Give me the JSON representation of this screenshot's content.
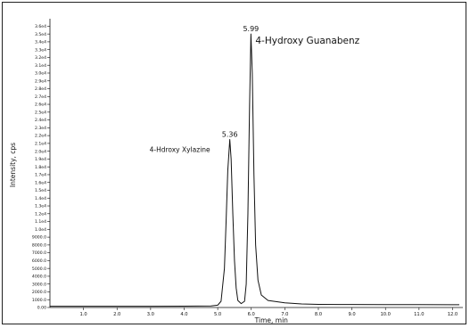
{
  "chart_data": {
    "type": "line",
    "xlabel": "Time, min",
    "ylabel": "Intensity, cps",
    "xlim": [
      0,
      12.2
    ],
    "ylim": [
      0,
      36500
    ],
    "x_ticks": [
      1.0,
      2.0,
      3.0,
      4.0,
      5.0,
      6.0,
      7.0,
      8.0,
      9.0,
      10.0,
      11.0,
      12.0
    ],
    "x_tick_labels": [
      "1.0",
      "2.0",
      "3.0",
      "4.0",
      "5.0",
      "6.0",
      "7.0",
      "8.0",
      "9.0",
      "10.0",
      "11.0",
      "12.0"
    ],
    "y_ticks": [
      0,
      1000,
      2000,
      3000,
      4000,
      5000,
      6000,
      7000,
      8000,
      9000,
      10000,
      11000,
      12000,
      13000,
      14000,
      15000,
      16000,
      17000,
      18000,
      19000,
      20000,
      21000,
      22000,
      23000,
      24000,
      25000,
      26000,
      27000,
      28000,
      29000,
      30000,
      31000,
      32000,
      33000,
      34000,
      35000,
      36000
    ],
    "y_tick_labels": [
      "0.00",
      "1000.0",
      "2000.0",
      "3000.0",
      "4000.0",
      "5000.0",
      "6000.0",
      "7000.0",
      "8000.0",
      "9000.0",
      "1.0e4",
      "1.1e4",
      "1.2e4",
      "1.3e4",
      "1.4e4",
      "1.5e4",
      "1.6e4",
      "1.7e4",
      "1.8e4",
      "1.9e4",
      "2.0e4",
      "2.1e4",
      "2.2e4",
      "2.3e4",
      "2.4e4",
      "2.5e4",
      "2.6e4",
      "2.7e4",
      "2.8e4",
      "2.9e4",
      "3.0e4",
      "3.1e4",
      "3.2e4",
      "3.3e4",
      "3.4e4",
      "3.5e4",
      "3.6e4"
    ],
    "series": [
      {
        "points": [
          [
            0.0,
            150
          ],
          [
            1.0,
            160
          ],
          [
            2.0,
            150
          ],
          [
            3.0,
            160
          ],
          [
            4.0,
            170
          ],
          [
            4.8,
            200
          ],
          [
            5.0,
            300
          ],
          [
            5.1,
            800
          ],
          [
            5.2,
            5000
          ],
          [
            5.25,
            11000
          ],
          [
            5.3,
            17500
          ],
          [
            5.36,
            21500
          ],
          [
            5.4,
            19000
          ],
          [
            5.45,
            12000
          ],
          [
            5.5,
            6000
          ],
          [
            5.55,
            2500
          ],
          [
            5.6,
            900
          ],
          [
            5.7,
            500
          ],
          [
            5.8,
            800
          ],
          [
            5.85,
            3000
          ],
          [
            5.9,
            12000
          ],
          [
            5.95,
            26000
          ],
          [
            5.99,
            35000
          ],
          [
            6.03,
            30000
          ],
          [
            6.08,
            17000
          ],
          [
            6.13,
            8000
          ],
          [
            6.2,
            3500
          ],
          [
            6.3,
            1600
          ],
          [
            6.5,
            900
          ],
          [
            7.0,
            600
          ],
          [
            7.5,
            450
          ],
          [
            8.0,
            400
          ],
          [
            9.0,
            380
          ],
          [
            10.0,
            370
          ],
          [
            11.0,
            370
          ],
          [
            12.0,
            360
          ],
          [
            12.2,
            360
          ]
        ]
      }
    ],
    "peaks": [
      {
        "x": 5.36,
        "y": 21500,
        "rt_label": "5.36",
        "compound": "4-Hdroxy Xylazine"
      },
      {
        "x": 5.99,
        "y": 35000,
        "rt_label": "5.99",
        "compound": "4-Hydroxy Guanabenz"
      }
    ],
    "grid": false,
    "legend": "none",
    "line_color": "#111111"
  }
}
